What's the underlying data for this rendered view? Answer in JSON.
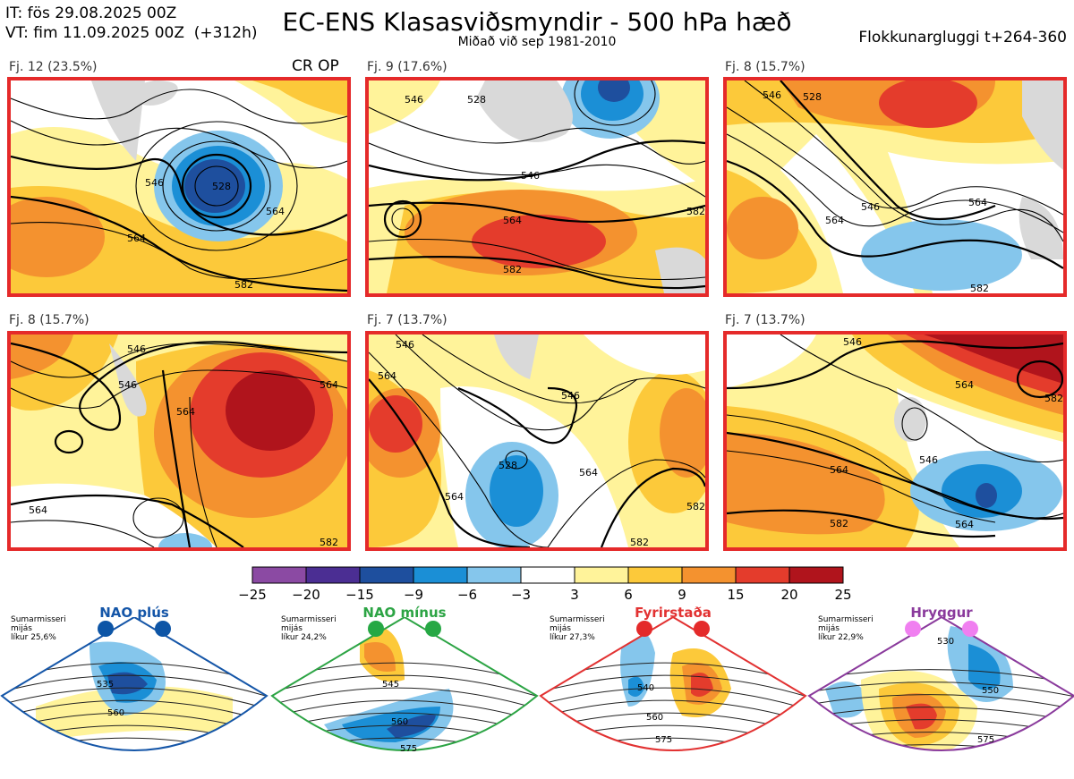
{
  "header": {
    "init_time": "IT: fös 29.08.2025 00Z",
    "valid_time": "VT: fim 11.09.2025 00Z  (+312h)",
    "title": "EC-ENS Klasasviðsmyndir - 500 hPa hæð",
    "subtitle": "Miðað við sep 1981-2010",
    "window": "Flokkunargluggi t+264-360",
    "crop_label": "CR OP"
  },
  "panels": [
    {
      "label": "Fj. 12 (23.5%)",
      "members": 12,
      "percent": 23.5,
      "contours": [
        "546",
        "564",
        "528",
        "564",
        "582"
      ]
    },
    {
      "label": "Fj. 9 (17.6%)",
      "members": 9,
      "percent": 17.6,
      "contours": [
        "546",
        "528",
        "564",
        "546",
        "582",
        "582"
      ]
    },
    {
      "label": "Fj. 8 (15.7%)",
      "members": 8,
      "percent": 15.7,
      "contours": [
        "546",
        "528",
        "564",
        "546",
        "564",
        "582"
      ]
    },
    {
      "label": "Fj. 8 (15.7%)",
      "members": 8,
      "percent": 15.7,
      "contours": [
        "546",
        "546",
        "564",
        "564",
        "564",
        "582"
      ]
    },
    {
      "label": "Fj. 7 (13.7%)",
      "members": 7,
      "percent": 13.7,
      "contours": [
        "546",
        "546",
        "528",
        "564",
        "564",
        "564",
        "582",
        "582"
      ]
    },
    {
      "label": "Fj. 7 (13.7%)",
      "members": 7,
      "percent": 13.7,
      "contours": [
        "546",
        "564",
        "546",
        "564",
        "582",
        "564",
        "582"
      ]
    }
  ],
  "chart_data": {
    "type": "heatmap",
    "title": "EC-ENS Klasasviðsmyndir - 500 hPa hæð",
    "subtitle": "Miðað við sep 1981-2010",
    "colorbar": {
      "ticks": [
        "−25",
        "−20",
        "−15",
        "−9",
        "−6",
        "−3",
        "3",
        "6",
        "9",
        "15",
        "20",
        "25"
      ],
      "tick_values": [
        -25,
        -20,
        -15,
        -9,
        -6,
        -3,
        3,
        6,
        9,
        15,
        20,
        25
      ],
      "colors": [
        "#8b4aa3",
        "#4b2e93",
        "#1e4f9e",
        "#1b8fd6",
        "#85c6ec",
        "#ffffff",
        "#fff39a",
        "#fcc93a",
        "#f4922f",
        "#e43c2c",
        "#b0141c"
      ]
    },
    "clusters": [
      {
        "name": "Fj. 12",
        "members": 12,
        "percent": 23.5
      },
      {
        "name": "Fj. 9",
        "members": 9,
        "percent": 17.6
      },
      {
        "name": "Fj. 8",
        "members": 8,
        "percent": 15.7
      },
      {
        "name": "Fj. 8",
        "members": 8,
        "percent": 15.7
      },
      {
        "name": "Fj. 7",
        "members": 7,
        "percent": 13.7
      },
      {
        "name": "Fj. 7",
        "members": 7,
        "percent": 13.7
      }
    ],
    "contour_levels": [
      528,
      546,
      564,
      582
    ]
  },
  "regimes": [
    {
      "title": "NAO plús",
      "note": [
        "Sumarmisseri",
        "mijás",
        "líkur 25,6%"
      ],
      "probability": 25.6,
      "color": "#1556a8",
      "dot": "#0d55a6",
      "contours": [
        "535",
        "560"
      ]
    },
    {
      "title": "NAO mínus",
      "note": [
        "Sumarmisseri",
        "mijás",
        "líkur 24,2%"
      ],
      "probability": 24.2,
      "color": "#2ca444",
      "dot": "#26a844",
      "contours": [
        "545",
        "560",
        "575"
      ]
    },
    {
      "title": "Fyrirstaða",
      "note": [
        "Sumarmisseri",
        "mijás",
        "líkur 27,3%"
      ],
      "probability": 27.3,
      "color": "#e23232",
      "dot": "#e42a2a",
      "contours": [
        "540",
        "560",
        "575"
      ]
    },
    {
      "title": "Hryggur",
      "note": [
        "Sumarmisseri",
        "mijás",
        "líkur 22,9%"
      ],
      "probability": 22.9,
      "color": "#8a3a9c",
      "dot": "#f07ff0",
      "contours": [
        "530",
        "550",
        "575"
      ]
    }
  ]
}
